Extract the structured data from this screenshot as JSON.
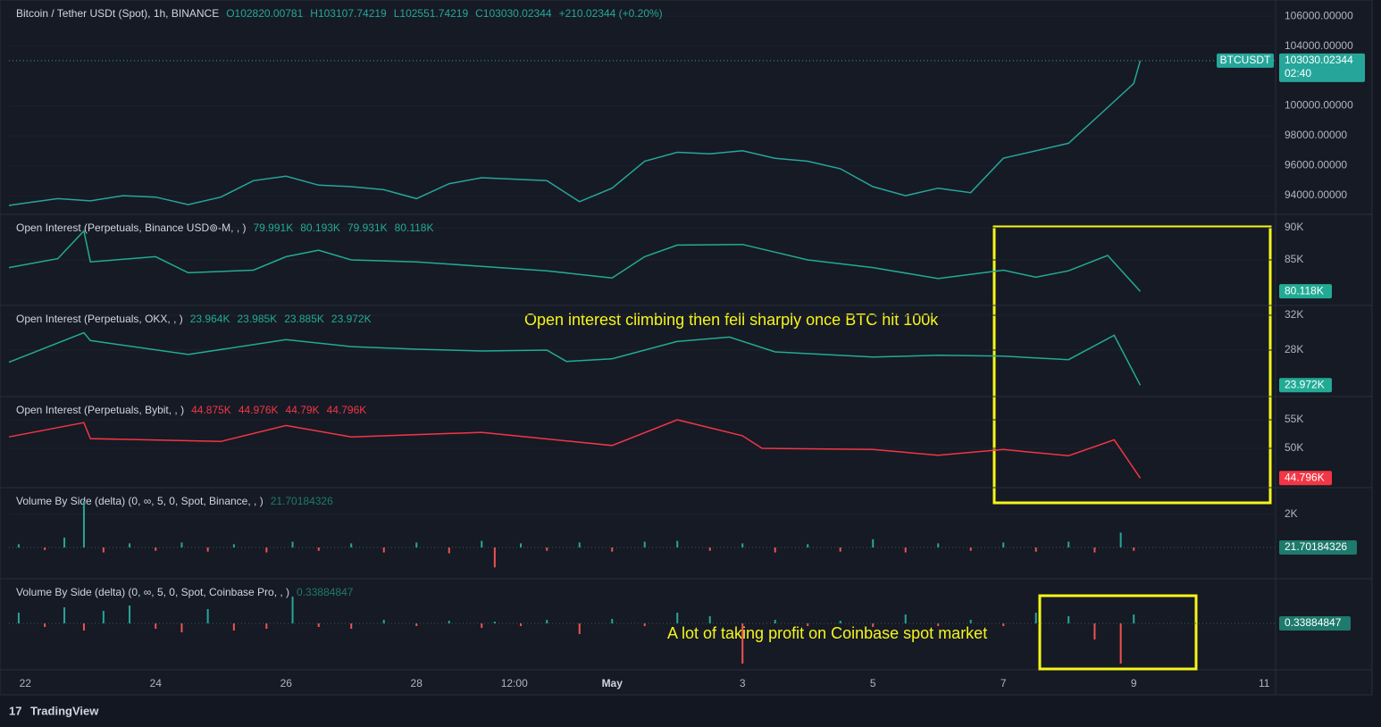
{
  "x_axis": {
    "xlim": [
      -0.25,
      19.175
    ],
    "ticks": [
      {
        "value": 0,
        "label": "22"
      },
      {
        "value": 2,
        "label": "24"
      },
      {
        "value": 4,
        "label": "26"
      },
      {
        "value": 6,
        "label": "28"
      },
      {
        "value": 7.5,
        "label": "12:00"
      },
      {
        "value": 9,
        "label": "May"
      },
      {
        "value": 11,
        "label": "3"
      },
      {
        "value": 13,
        "label": "5"
      },
      {
        "value": 15,
        "label": "7"
      },
      {
        "value": 17,
        "label": "9"
      },
      {
        "value": 19,
        "label": "11"
      }
    ]
  },
  "chart_data": [
    {
      "type": "line",
      "title": "Bitcoin / Tether USDt (Spot), 1h, BINANCE",
      "legend": [
        "O102820.00781",
        "H103107.74219",
        "L102551.74219",
        "C103030.02344",
        "+210.02344 (+0.20%)"
      ],
      "color": "#26a69a",
      "symbol": "BTCUSDT",
      "last_label": "103030.02344",
      "countdown": "02:40",
      "x": [
        -0.25,
        0,
        0.5,
        1,
        1.5,
        2,
        2.5,
        3,
        3.5,
        4,
        4.5,
        5,
        5.5,
        6,
        6.5,
        7,
        7.5,
        8,
        8.5,
        9,
        9.5,
        10,
        10.5,
        11,
        11.5,
        12,
        12.5,
        13,
        13.5,
        14,
        14.5,
        15,
        15.5,
        16,
        16.5,
        17,
        17.1
      ],
      "values": [
        93350,
        93500,
        93800,
        93650,
        94000,
        93900,
        93400,
        93900,
        95000,
        95300,
        94700,
        94600,
        94400,
        93800,
        94800,
        95200,
        95100,
        95000,
        93600,
        94500,
        96300,
        96900,
        96800,
        97000,
        96500,
        96300,
        95800,
        94600,
        94000,
        94500,
        94200,
        96500,
        97000,
        97500,
        99500,
        101500,
        103030.02344
      ],
      "ylim": [
        92750,
        107080
      ],
      "yticks": [
        {
          "value": 94000,
          "label": "94000.00000"
        },
        {
          "value": 96000,
          "label": "96000.00000"
        },
        {
          "value": 98000,
          "label": "98000.00000"
        },
        {
          "value": 100000,
          "label": "100000.00000"
        },
        {
          "value": 104000,
          "label": "104000.00000"
        },
        {
          "value": 106000,
          "label": "106000.00000"
        }
      ]
    },
    {
      "type": "line",
      "title": "Open Interest (Perpetuals, Binance USD⊚-M, , )",
      "legend": [
        "79.991K",
        "80.193K",
        "79.931K",
        "80.118K"
      ],
      "color": "#22ab94",
      "last_label": "80.118K",
      "x": [
        -0.25,
        0.5,
        0.9,
        1,
        2,
        2.5,
        3.5,
        4,
        4.5,
        5,
        6,
        7,
        8,
        9,
        9.5,
        10,
        11,
        12,
        13,
        14,
        15,
        15.5,
        16,
        16.6,
        17.1
      ],
      "values": [
        83800,
        85200,
        89500,
        84700,
        85500,
        83000,
        83400,
        85500,
        86500,
        85000,
        84700,
        84000,
        83300,
        82200,
        85500,
        87300,
        87400,
        85000,
        83800,
        82100,
        83400,
        82300,
        83300,
        85700,
        80118
      ],
      "ylim": [
        77920,
        92080
      ],
      "yticks": [
        {
          "value": 85000,
          "label": "85K"
        },
        {
          "value": 90000,
          "label": "90K"
        }
      ]
    },
    {
      "type": "line",
      "title": "Open Interest (Perpetuals, OKX, , )",
      "legend": [
        "23.964K",
        "23.985K",
        "23.885K",
        "23.972K"
      ],
      "color": "#22ab94",
      "last_label": "23.972K",
      "x": [
        -0.25,
        0.9,
        1,
        2.5,
        4,
        5,
        6,
        7,
        8,
        8.3,
        9,
        10,
        10.8,
        11.5,
        13,
        14,
        15,
        16,
        16.7,
        17.1
      ],
      "values": [
        26600,
        30000,
        29100,
        27500,
        29200,
        28400,
        28100,
        27900,
        28000,
        26700,
        27000,
        29000,
        29500,
        27800,
        27200,
        27400,
        27300,
        26900,
        29700,
        23972
      ],
      "ylim": [
        22665,
        33130
      ],
      "yticks": [
        {
          "value": 28000,
          "label": "28K"
        },
        {
          "value": 32000,
          "label": "32K"
        }
      ]
    },
    {
      "type": "line",
      "title": "Open Interest (Perpetuals, Bybit, , )",
      "legend": [
        "44.875K",
        "44.976K",
        "44.79K",
        "44.796K"
      ],
      "color": "#f23645",
      "last_label": "44.796K",
      "x": [
        -0.25,
        0.9,
        1,
        3,
        4,
        5,
        7,
        9,
        10,
        11,
        11.3,
        13,
        14,
        15,
        16,
        16.7,
        17.1
      ],
      "values": [
        52000,
        54500,
        51700,
        51200,
        54000,
        52000,
        52800,
        50500,
        55000,
        52200,
        50000,
        49800,
        48800,
        49800,
        48700,
        51500,
        44796
      ],
      "ylim": [
        43125,
        59060
      ],
      "yticks": [
        {
          "value": 50000,
          "label": "50K"
        },
        {
          "value": 55000,
          "label": "55K"
        }
      ]
    },
    {
      "type": "bar",
      "title": "Volume By Side (delta) (0, ∞, 5, 0, Spot, Binance, , )",
      "legend": [
        "21.70184326"
      ],
      "color": "#22ab94",
      "last_label": "21.70184326",
      "x": [
        -0.1,
        0.3,
        0.6,
        0.9,
        1.2,
        1.6,
        2.0,
        2.4,
        2.8,
        3.2,
        3.7,
        4.1,
        4.5,
        5.0,
        5.5,
        6.0,
        6.5,
        7.0,
        7.2,
        7.6,
        8.0,
        8.5,
        9.0,
        9.5,
        10.0,
        10.5,
        11.0,
        11.5,
        12.0,
        12.5,
        13.0,
        13.5,
        14.0,
        14.5,
        15.0,
        15.5,
        16.0,
        16.4,
        16.8,
        17.0
      ],
      "values": [
        200,
        -150,
        600,
        2800,
        -300,
        250,
        -200,
        300,
        -250,
        200,
        -300,
        350,
        -200,
        250,
        -300,
        300,
        -350,
        400,
        -1200,
        250,
        -200,
        300,
        -250,
        350,
        400,
        -200,
        250,
        -300,
        200,
        -250,
        500,
        -300,
        250,
        -200,
        300,
        -250,
        350,
        -300,
        900,
        -200
      ],
      "ylim": [
        -1890,
        3620
      ],
      "yticks": [
        {
          "value": 2000,
          "label": "2K"
        }
      ]
    },
    {
      "type": "bar",
      "title": "Volume By Side (delta) (0, ∞, 5, 0, Spot, Coinbase Pro, , )",
      "legend": [
        "0.33884847"
      ],
      "color": "#22ab94",
      "last_label": "0.33884847",
      "x": [
        -0.1,
        0.3,
        0.6,
        0.9,
        1.2,
        1.6,
        2.0,
        2.4,
        2.8,
        3.2,
        3.7,
        4.1,
        4.5,
        5.0,
        5.5,
        6.0,
        6.5,
        7.0,
        7.2,
        7.6,
        8.0,
        8.5,
        9.0,
        9.5,
        10.0,
        10.5,
        11.0,
        11.5,
        12.0,
        12.5,
        13.0,
        13.5,
        14.0,
        14.5,
        15.0,
        15.5,
        16.0,
        16.4,
        16.8,
        17.0
      ],
      "values": [
        12,
        -4,
        18,
        -8,
        14,
        20,
        -6,
        -10,
        16,
        -8,
        -6,
        30,
        -4,
        -6,
        4,
        -3,
        3,
        -5,
        2,
        -3,
        4,
        -12,
        5,
        -3,
        12,
        8,
        -45,
        4,
        -3,
        3,
        -4,
        10,
        -3,
        4,
        -3,
        12,
        8,
        -18,
        -45,
        10
      ],
      "ylim": [
        -52,
        50
      ],
      "yticks": []
    }
  ],
  "annotations": [
    "Open interest climbing then fell sharply once BTC hit 100k",
    "A lot of taking profit on Coinbase spot market"
  ],
  "brand": "TradingView"
}
